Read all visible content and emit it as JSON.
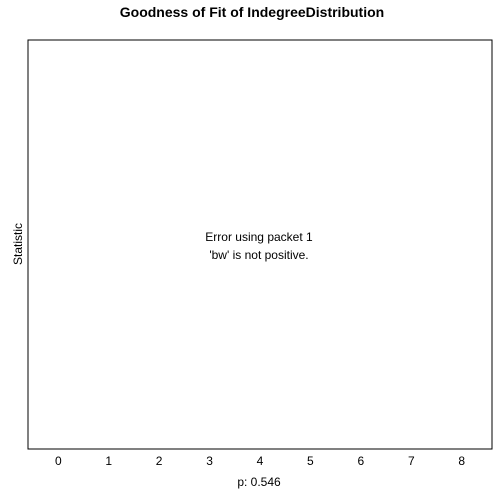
{
  "chart_data": {
    "type": "line",
    "title": "Goodness of Fit of IndegreeDistribution",
    "xlabel": "p: 0.546",
    "ylabel": "Statistic",
    "x_ticks": [
      "0",
      "1",
      "2",
      "3",
      "4",
      "5",
      "6",
      "7",
      "8"
    ],
    "xlim": [
      -0.6,
      8.6
    ],
    "error_lines": [
      "Error using packet 1",
      "'bw' is not positive."
    ],
    "series": [],
    "grid": false
  }
}
